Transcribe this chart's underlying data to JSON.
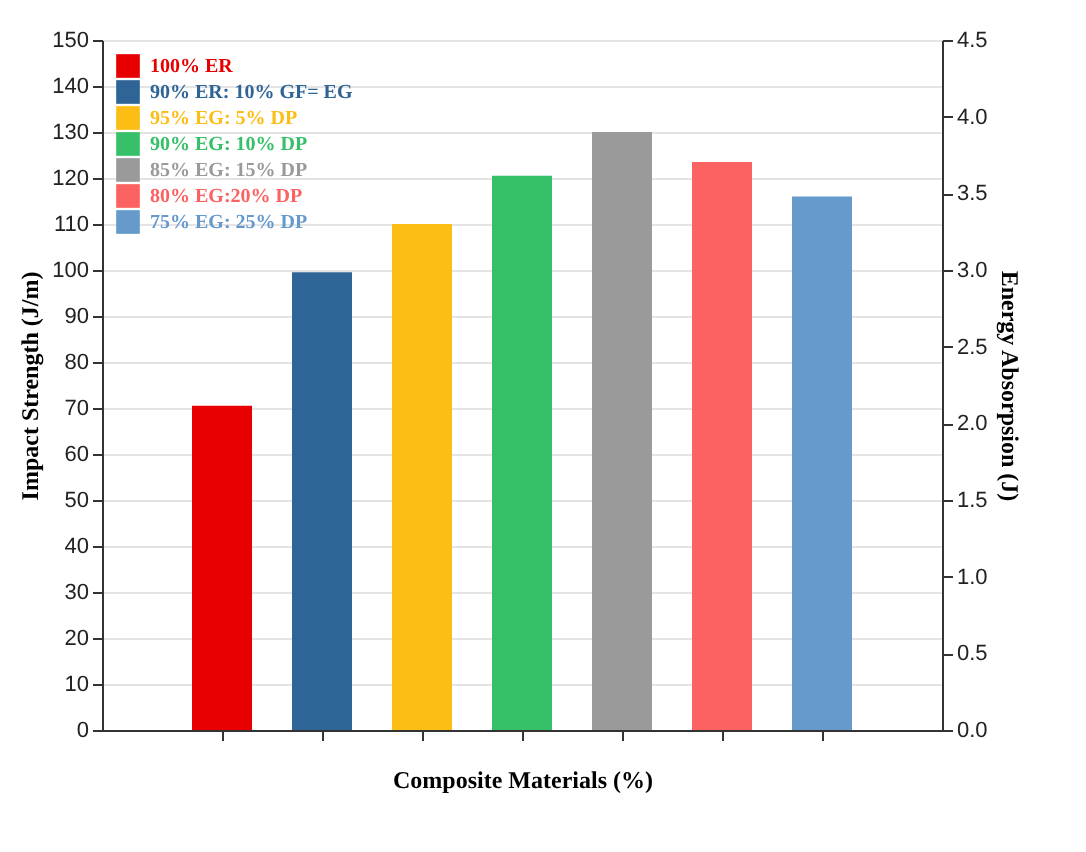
{
  "chart_data": {
    "type": "bar",
    "xlabel": "Composite Materials (%)",
    "ylabel": "Impact Strength (J/m)",
    "y2label": "Energy Absorpsion (J)",
    "categories": [
      null,
      null,
      null,
      null,
      null,
      null,
      null
    ],
    "series": [
      {
        "name": "100% ER",
        "color": "#e80000",
        "values": [
          70.5,
          null,
          null,
          null,
          null,
          null,
          null
        ]
      },
      {
        "name": "90% ER: 10% GF= EG",
        "color": "#2f6496",
        "values": [
          null,
          99.5,
          null,
          null,
          null,
          null,
          null
        ]
      },
      {
        "name": "95% EG: 5% DP",
        "color": "#fcbd15",
        "values": [
          null,
          null,
          110,
          null,
          null,
          null,
          null
        ]
      },
      {
        "name": "90% EG: 10% DP",
        "color": "#37c06a",
        "values": [
          null,
          null,
          null,
          120.5,
          null,
          null,
          null
        ]
      },
      {
        "name": "85% EG: 15% DP",
        "color": "#9a9a9a",
        "values": [
          null,
          null,
          null,
          null,
          130,
          null,
          null
        ]
      },
      {
        "name": "80% EG:20% DP",
        "color": "#fd6262",
        "values": [
          null,
          null,
          null,
          null,
          null,
          123.5,
          null
        ]
      },
      {
        "name": "75% EG: 25% DP",
        "color": "#6699cc",
        "values": [
          null,
          null,
          null,
          null,
          null,
          null,
          116
        ]
      }
    ],
    "ylim": [
      0,
      150
    ],
    "yticks": [
      0,
      10,
      20,
      30,
      40,
      50,
      60,
      70,
      80,
      90,
      100,
      110,
      120,
      130,
      140,
      150
    ],
    "y2lim": [
      0,
      4.5
    ],
    "y2ticks": [
      {
        "value": 0,
        "label": "0.0"
      },
      0.5,
      {
        "value": 1,
        "label": "1.0"
      },
      1.5,
      {
        "value": 2,
        "label": "2.0"
      },
      2.5,
      {
        "value": 3,
        "label": "3.0"
      },
      3.5,
      {
        "value": 4,
        "label": "4.0"
      },
      4.5
    ],
    "grid": "y",
    "legend": "top left"
  }
}
